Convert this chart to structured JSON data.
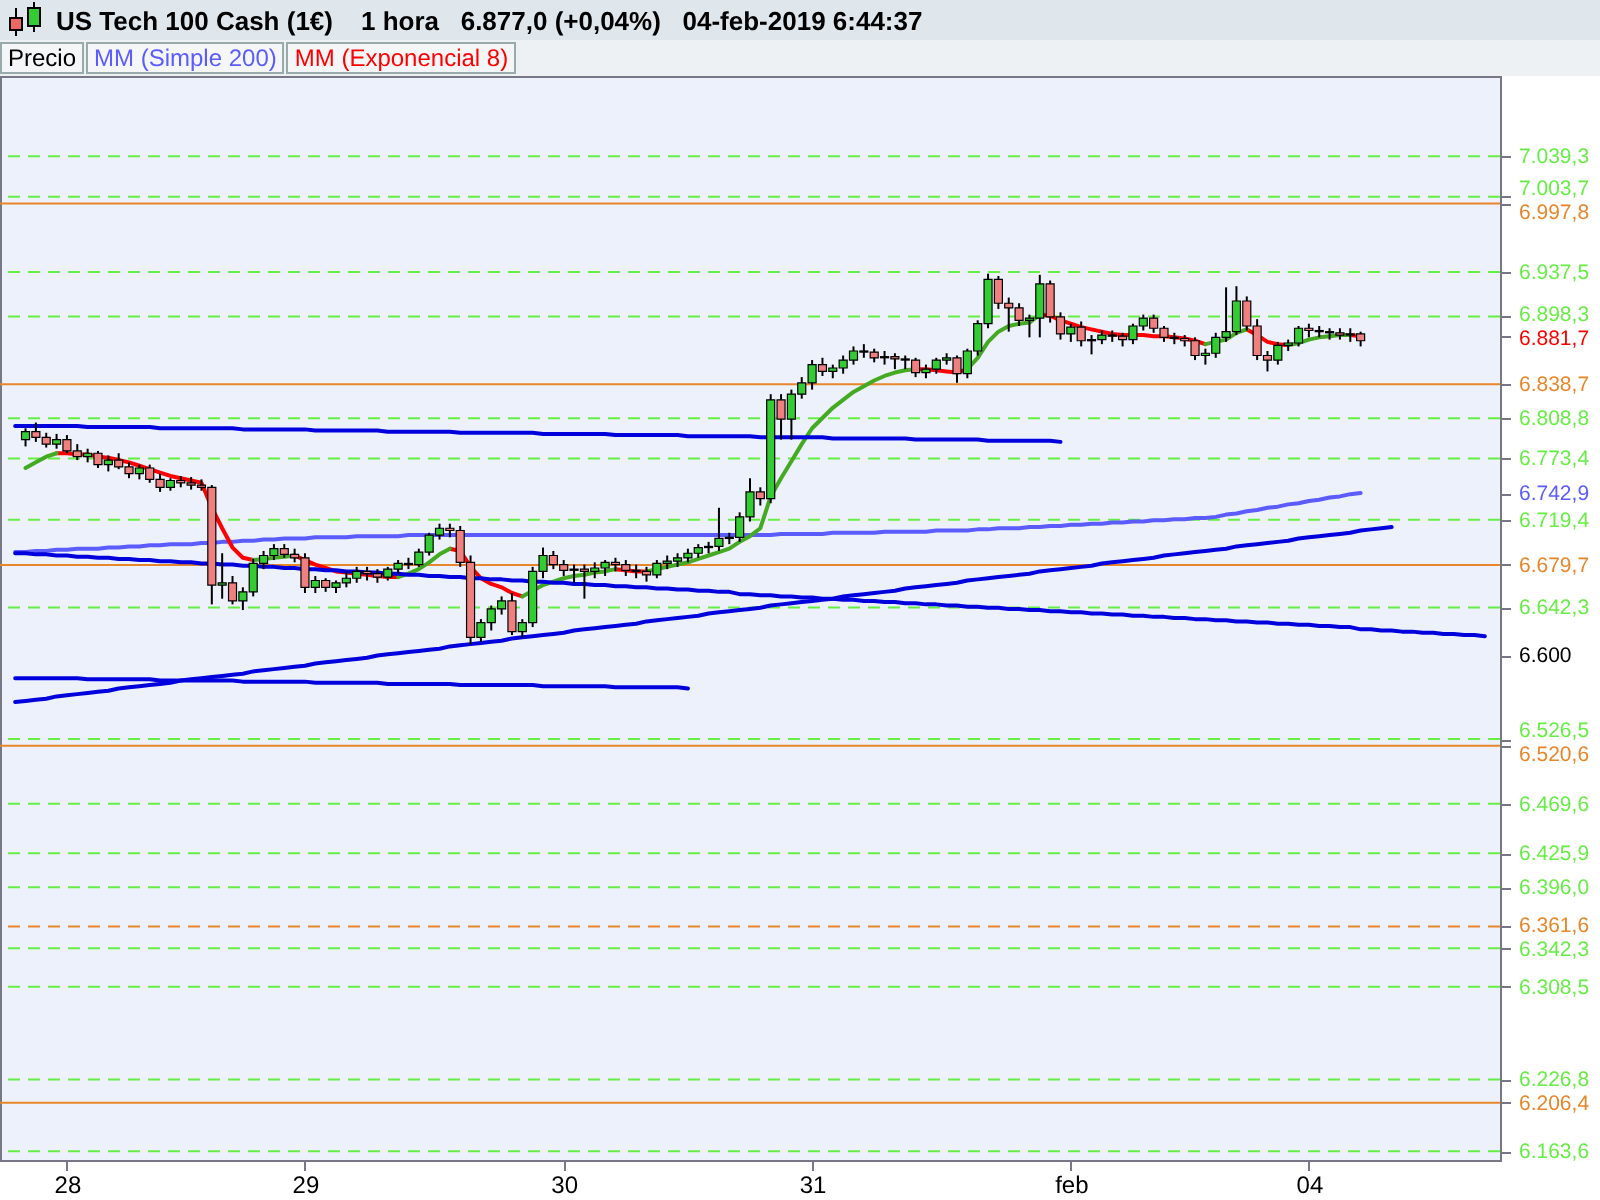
{
  "chart_data": {
    "type": "candlestick",
    "title": "US Tech 100 Cash (1€)",
    "subtitle": "1 hora   6.877,0 (+0,04%)   04-feb-2019 6:44:37",
    "legend": "top",
    "categories": [
      null,
      null,
      null,
      null,
      null,
      "28",
      null,
      null,
      null,
      null,
      null,
      null,
      null,
      null,
      null,
      null,
      null,
      null,
      null,
      null,
      null,
      null,
      null,
      null,
      null,
      null,
      null,
      null,
      "29",
      null,
      null,
      null,
      null,
      null,
      null,
      null,
      null,
      null,
      null,
      null,
      null,
      null,
      null,
      null,
      null,
      null,
      null,
      null,
      null,
      null,
      null,
      null,
      null,
      "30",
      null,
      null,
      null,
      null,
      null,
      null,
      null,
      null,
      null,
      null,
      null,
      null,
      null,
      null,
      null,
      null,
      null,
      null,
      null,
      null,
      null,
      null,
      null,
      "31",
      null,
      null,
      null,
      null,
      null,
      null,
      null,
      null,
      null,
      null,
      null,
      null,
      null,
      null,
      null,
      null,
      null,
      null,
      null,
      null,
      null,
      null,
      null,
      null,
      "feb",
      null,
      null,
      null,
      null,
      null,
      null,
      null,
      null,
      null,
      null,
      null,
      null,
      null,
      null,
      null,
      null,
      null,
      null,
      null,
      null,
      null,
      null,
      "04",
      null,
      null,
      null,
      null,
      null,
      null,
      null,
      null,
      null,
      null,
      null,
      null,
      null,
      null,
      null,
      null,
      null
    ],
    "ylim": [
      6156,
      7110
    ],
    "yticks": [
      {
        "value": 7039.3,
        "label": "7.039,3"
      },
      {
        "value": 7003.7,
        "label": "7.003,7"
      },
      {
        "value": 6997.8,
        "label": "6.997,8"
      },
      {
        "value": 6937.5,
        "label": "6.937,5"
      },
      {
        "value": 6898.3,
        "label": "6.898,3"
      },
      {
        "value": 6881.7,
        "label": "6.881,7"
      },
      {
        "value": 6838.7,
        "label": "6.838,7"
      },
      {
        "value": 6808.8,
        "label": "6.808,8"
      },
      {
        "value": 6773.4,
        "label": "6.773,4"
      },
      {
        "value": 6742.9,
        "label": "6.742,9"
      },
      {
        "value": 6719.4,
        "label": "6.719,4"
      },
      {
        "value": 6679.7,
        "label": "6.679,7"
      },
      {
        "value": 6642.3,
        "label": "6.642,3"
      },
      {
        "value": 6600,
        "label": "6.600"
      },
      {
        "value": 6526.5,
        "label": "6.526,5"
      },
      {
        "value": 6520.6,
        "label": "6.520,6"
      },
      {
        "value": 6469.6,
        "label": "6.469,6"
      },
      {
        "value": 6425.9,
        "label": "6.425,9"
      },
      {
        "value": 6396.0,
        "label": "6.396,0"
      },
      {
        "value": 6361.6,
        "label": "6.361,6"
      },
      {
        "value": 6342.3,
        "label": "6.342,3"
      },
      {
        "value": 6308.5,
        "label": "6.308,5"
      },
      {
        "value": 6226.8,
        "label": "6.226,8"
      },
      {
        "value": 6206.4,
        "label": "6.206,4"
      },
      {
        "value": 6163.6,
        "label": "6.163,6"
      }
    ],
    "series": [
      {
        "name": "Precio",
        "ohlc": [
          null,
          [
            6790,
            6800,
            6784,
            6797
          ],
          [
            6797,
            6805,
            6788,
            6792
          ],
          [
            6792,
            6796,
            6783,
            6786
          ],
          [
            6786,
            6795,
            6782,
            6790
          ],
          [
            6790,
            6794,
            6778,
            6780
          ],
          [
            6780,
            6786,
            6772,
            6775
          ],
          [
            6775,
            6782,
            6770,
            6778
          ],
          [
            6778,
            6780,
            6765,
            6768
          ],
          [
            6768,
            6776,
            6762,
            6772
          ],
          [
            6772,
            6778,
            6764,
            6766
          ],
          [
            6766,
            6770,
            6756,
            6760
          ],
          [
            6760,
            6768,
            6755,
            6765
          ],
          [
            6765,
            6768,
            6752,
            6755
          ],
          [
            6755,
            6760,
            6744,
            6748
          ],
          [
            6748,
            6756,
            6745,
            6754
          ],
          [
            6754,
            6758,
            6748,
            6752
          ],
          [
            6752,
            6757,
            6746,
            6750
          ],
          [
            6750,
            6755,
            6745,
            6748
          ],
          [
            6748,
            6750,
            6645,
            6662
          ],
          [
            6662,
            6690,
            6650,
            6664
          ],
          [
            6664,
            6670,
            6645,
            6648
          ],
          [
            6648,
            6660,
            6640,
            6656
          ],
          [
            6656,
            6685,
            6652,
            6681
          ],
          [
            6681,
            6692,
            6676,
            6688
          ],
          [
            6688,
            6698,
            6684,
            6694
          ],
          [
            6694,
            6698,
            6686,
            6689
          ],
          [
            6689,
            6694,
            6682,
            6686
          ],
          [
            6686,
            6690,
            6655,
            6660
          ],
          [
            6660,
            6670,
            6655,
            6666
          ],
          [
            6666,
            6668,
            6656,
            6660
          ],
          [
            6660,
            6666,
            6655,
            6664
          ],
          [
            6664,
            6674,
            6660,
            6668
          ],
          [
            6668,
            6678,
            6664,
            6674
          ],
          [
            6674,
            6678,
            6666,
            6672
          ],
          [
            6672,
            6676,
            6664,
            6669
          ],
          [
            6669,
            6678,
            6666,
            6676
          ],
          [
            6676,
            6684,
            6672,
            6681
          ],
          [
            6681,
            6686,
            6676,
            6680
          ],
          [
            6680,
            6694,
            6678,
            6691
          ],
          [
            6691,
            6708,
            6688,
            6706
          ],
          [
            6706,
            6716,
            6702,
            6712
          ],
          [
            6712,
            6716,
            6704,
            6710
          ],
          [
            6710,
            6714,
            6678,
            6682
          ],
          [
            6682,
            6688,
            6610,
            6616
          ],
          [
            6616,
            6632,
            6612,
            6629
          ],
          [
            6629,
            6644,
            6622,
            6641
          ],
          [
            6641,
            6652,
            6636,
            6648
          ],
          [
            6648,
            6655,
            6618,
            6621
          ],
          [
            6621,
            6632,
            6616,
            6629
          ],
          [
            6629,
            6678,
            6625,
            6674
          ],
          [
            6674,
            6695,
            6668,
            6688
          ],
          [
            6688,
            6692,
            6676,
            6680
          ],
          [
            6680,
            6684,
            6670,
            6675
          ],
          [
            6675,
            6680,
            6664,
            6676
          ],
          [
            6676,
            6680,
            6650,
            6674
          ],
          [
            6674,
            6682,
            6668,
            6677
          ],
          [
            6677,
            6684,
            6670,
            6682
          ],
          [
            6682,
            6686,
            6674,
            6680
          ],
          [
            6680,
            6684,
            6670,
            6675
          ],
          [
            6675,
            6680,
            6668,
            6674
          ],
          [
            6674,
            6678,
            6665,
            6671
          ],
          [
            6671,
            6684,
            6668,
            6681
          ],
          [
            6681,
            6688,
            6676,
            6683
          ],
          [
            6683,
            6690,
            6678,
            6686
          ],
          [
            6686,
            6694,
            6682,
            6690
          ],
          [
            6690,
            6698,
            6686,
            6695
          ],
          [
            6695,
            6700,
            6690,
            6696
          ],
          [
            6696,
            6730,
            6692,
            6703
          ],
          [
            6703,
            6708,
            6698,
            6704
          ],
          [
            6704,
            6726,
            6700,
            6722
          ],
          [
            6722,
            6756,
            6718,
            6744
          ],
          [
            6744,
            6748,
            6732,
            6738
          ],
          [
            6738,
            6830,
            6734,
            6825
          ],
          [
            6825,
            6830,
            6790,
            6808
          ],
          [
            6808,
            6834,
            6790,
            6830
          ],
          [
            6830,
            6845,
            6826,
            6840
          ],
          [
            6840,
            6860,
            6834,
            6856
          ],
          [
            6856,
            6862,
            6846,
            6850
          ],
          [
            6850,
            6856,
            6844,
            6853
          ],
          [
            6853,
            6864,
            6848,
            6860
          ],
          [
            6860,
            6872,
            6856,
            6868
          ],
          [
            6868,
            6874,
            6862,
            6867
          ],
          [
            6867,
            6870,
            6858,
            6862
          ],
          [
            6862,
            6868,
            6856,
            6863
          ],
          [
            6863,
            6866,
            6852,
            6861
          ],
          [
            6861,
            6864,
            6852,
            6860
          ],
          [
            6860,
            6862,
            6845,
            6849
          ],
          [
            6849,
            6856,
            6844,
            6852
          ],
          [
            6852,
            6862,
            6848,
            6860
          ],
          [
            6860,
            6866,
            6856,
            6862
          ],
          [
            6862,
            6864,
            6840,
            6848
          ],
          [
            6848,
            6870,
            6844,
            6868
          ],
          [
            6868,
            6895,
            6864,
            6892
          ],
          [
            6892,
            6936,
            6888,
            6931
          ],
          [
            6931,
            6934,
            6905,
            6910
          ],
          [
            6910,
            6915,
            6885,
            6906
          ],
          [
            6906,
            6910,
            6890,
            6895
          ],
          [
            6895,
            6900,
            6880,
            6897
          ],
          [
            6897,
            6935,
            6880,
            6927
          ],
          [
            6927,
            6930,
            6893,
            6898
          ],
          [
            6898,
            6902,
            6878,
            6883
          ],
          [
            6883,
            6892,
            6876,
            6889
          ],
          [
            6889,
            6894,
            6872,
            6877
          ],
          [
            6877,
            6882,
            6865,
            6878
          ],
          [
            6878,
            6886,
            6874,
            6882
          ],
          [
            6882,
            6886,
            6876,
            6881
          ],
          [
            6881,
            6884,
            6872,
            6878
          ],
          [
            6878,
            6892,
            6874,
            6890
          ],
          [
            6890,
            6900,
            6886,
            6897
          ],
          [
            6897,
            6900,
            6884,
            6888
          ],
          [
            6888,
            6890,
            6876,
            6880
          ],
          [
            6880,
            6884,
            6874,
            6879
          ],
          [
            6879,
            6882,
            6872,
            6877
          ],
          [
            6877,
            6880,
            6860,
            6864
          ],
          [
            6864,
            6870,
            6856,
            6866
          ],
          [
            6866,
            6884,
            6862,
            6880
          ],
          [
            6880,
            6924,
            6876,
            6885
          ],
          [
            6885,
            6925,
            6882,
            6912
          ],
          [
            6912,
            6916,
            6886,
            6890
          ],
          [
            6890,
            6896,
            6860,
            6864
          ],
          [
            6864,
            6868,
            6850,
            6860
          ],
          [
            6860,
            6876,
            6856,
            6873
          ],
          [
            6873,
            6878,
            6868,
            6875
          ],
          [
            6875,
            6890,
            6872,
            6888
          ],
          [
            6888,
            6892,
            6880,
            6886
          ],
          [
            6886,
            6890,
            6880,
            6885
          ],
          [
            6885,
            6888,
            6878,
            6884
          ],
          [
            6884,
            6888,
            6878,
            6882
          ],
          [
            6882,
            6888,
            6876,
            6883
          ],
          [
            6883,
            6885,
            6872,
            6877
          ],
          null,
          null,
          null,
          null,
          null,
          null,
          null,
          null,
          null,
          null,
          null,
          null
        ]
      },
      {
        "name": "MM (Simple 200)",
        "type": "line",
        "color": "#5b5bff",
        "values": [
          6691,
          6691,
          6692,
          6692,
          6693,
          6693,
          6694,
          6694,
          6694,
          6695,
          6695,
          6696,
          6696,
          6697,
          6697,
          6698,
          6698,
          6698,
          6699,
          6699,
          6700,
          6700,
          6701,
          6701,
          6702,
          6702,
          6703,
          6703,
          6703,
          6704,
          6704,
          6704,
          6704,
          6705,
          6705,
          6705,
          6705,
          6705,
          6706,
          6706,
          6706,
          6706,
          6706,
          6706,
          6706,
          6706,
          6706,
          6706,
          6706,
          6706,
          6706,
          6706,
          6706,
          6706,
          6706,
          6706,
          6706,
          6706,
          6706,
          6706,
          6706,
          6706,
          6706,
          6706,
          6706,
          6706,
          6706,
          6706,
          6706,
          6706,
          6706,
          6706,
          6706,
          6706,
          6707,
          6707,
          6707,
          6707,
          6707,
          6708,
          6708,
          6708,
          6708,
          6708,
          6709,
          6709,
          6709,
          6709,
          6709,
          6710,
          6710,
          6710,
          6710,
          6711,
          6711,
          6712,
          6712,
          6712,
          6713,
          6713,
          6714,
          6714,
          6715,
          6715,
          6716,
          6716,
          6717,
          6717,
          6718,
          6718,
          6719,
          6719,
          6720,
          6720,
          6721,
          6721,
          6722,
          6724,
          6725,
          6727,
          6728,
          6730,
          6731,
          6733,
          6734,
          6736,
          6737,
          6739,
          6740,
          6742,
          6743,
          null,
          null,
          null,
          null,
          null,
          null,
          null,
          null,
          null,
          null,
          null,
          null
        ]
      },
      {
        "name": "MM (Exponencial 8)",
        "type": "line",
        "color": "#ff0000",
        "values": [
          null,
          null,
          null,
          null,
          6778,
          6778,
          6777,
          6777,
          6775,
          6774,
          6772,
          6770,
          6767,
          6764,
          6761,
          6758,
          6756,
          6754,
          6752,
          6730,
          6712,
          6695,
          6686,
          6684,
          null,
          null,
          null,
          6688,
          6684,
          6680,
          6677,
          6674,
          6673,
          6672,
          6671,
          6670,
          6669,
          6669,
          null,
          null,
          null,
          null,
          6694,
          6692,
          6678,
          6668,
          6663,
          6660,
          6655,
          6652,
          null,
          null,
          null,
          null,
          null,
          null,
          null,
          null,
          6676,
          6675,
          6674,
          6674,
          null,
          null,
          null,
          null,
          null,
          null,
          null,
          null,
          null,
          null,
          null,
          null,
          null,
          null,
          null,
          null,
          null,
          null,
          null,
          null,
          null,
          null,
          null,
          null,
          null,
          6852,
          6852,
          6851,
          6850,
          6849,
          6852,
          null,
          null,
          null,
          null,
          null,
          null,
          6900,
          6899,
          6895,
          6892,
          6889,
          6887,
          6885,
          6883,
          6882,
          6882,
          6882,
          6881,
          6881,
          6880,
          6879,
          6877,
          6874,
          null,
          null,
          null,
          6887,
          6882,
          6876,
          6874,
          6873,
          null,
          null,
          null,
          null,
          null,
          6882,
          6881,
          null,
          null,
          null,
          null,
          null,
          null,
          null,
          null,
          null,
          null,
          null,
          null
        ]
      },
      {
        "type": "line",
        "color": "#44aa22",
        "values": [
          null,
          6765,
          6770,
          6775,
          6778,
          null,
          null,
          null,
          null,
          null,
          null,
          null,
          null,
          null,
          null,
          null,
          null,
          null,
          null,
          null,
          null,
          null,
          null,
          6684,
          6685,
          6686,
          6687,
          6688,
          null,
          null,
          null,
          null,
          null,
          null,
          null,
          null,
          null,
          6669,
          6672,
          6676,
          6682,
          6689,
          6694,
          null,
          null,
          null,
          null,
          null,
          null,
          6652,
          6657,
          6662,
          6665,
          6668,
          6670,
          6671,
          6673,
          6674,
          6676,
          null,
          null,
          6674,
          6676,
          6678,
          6680,
          6682,
          6685,
          6688,
          6691,
          6694,
          6700,
          6705,
          6712,
          6740,
          6756,
          6771,
          6786,
          6800,
          6809,
          6818,
          6825,
          6832,
          6837,
          6842,
          6846,
          6849,
          6851,
          6852,
          null,
          null,
          null,
          null,
          6852,
          6862,
          6876,
          6885,
          6890,
          6892,
          6893,
          6900,
          null,
          null,
          null,
          null,
          null,
          null,
          null,
          null,
          null,
          null,
          null,
          null,
          null,
          null,
          null,
          6874,
          6876,
          6878,
          6884,
          6887,
          null,
          null,
          null,
          6873,
          6875,
          6878,
          6880,
          6881,
          6882,
          6882,
          null,
          null,
          null,
          null,
          null,
          null,
          null,
          null,
          null,
          null,
          null,
          null,
          null
        ]
      },
      {
        "type": "line",
        "color": "#0000dd",
        "values": [
          6802,
          6802,
          6802,
          6802,
          6802,
          6802,
          6802,
          6801,
          6801,
          6801,
          6801,
          6801,
          6801,
          6801,
          6800,
          6800,
          6800,
          6800,
          6800,
          6800,
          6800,
          6800,
          6799,
          6799,
          6799,
          6799,
          6799,
          6799,
          6799,
          6798,
          6798,
          6798,
          6798,
          6798,
          6798,
          6798,
          6797,
          6797,
          6797,
          6797,
          6797,
          6797,
          6797,
          6796,
          6796,
          6796,
          6796,
          6796,
          6796,
          6796,
          6796,
          6795,
          6795,
          6795,
          6795,
          6795,
          6795,
          6795,
          6794,
          6794,
          6794,
          6794,
          6794,
          6794,
          6794,
          6793,
          6793,
          6793,
          6793,
          6793,
          6793,
          6793,
          6792,
          6792,
          6792,
          6792,
          6792,
          6792,
          6792,
          6791,
          6791,
          6791,
          6791,
          6791,
          6791,
          6791,
          6791,
          6790,
          6790,
          6790,
          6790,
          6790,
          6790,
          6790,
          6789,
          6789,
          6789,
          6789,
          6789,
          6789,
          6789,
          6788,
          null,
          null,
          null,
          null,
          null,
          null,
          null,
          null,
          null,
          null,
          null,
          null,
          null,
          null,
          null,
          null,
          null,
          null,
          null,
          null,
          null,
          null,
          null,
          null,
          null,
          null,
          null,
          null,
          null,
          null,
          null,
          null,
          null,
          null,
          null,
          null,
          null,
          null,
          null,
          null,
          null
        ]
      },
      {
        "type": "line",
        "color": "#0000dd",
        "values": [
          6690,
          6690,
          6689,
          6689,
          6688,
          6688,
          6687,
          6687,
          6686,
          6686,
          6685,
          6685,
          6684,
          6684,
          6683,
          6683,
          6682,
          6682,
          6681,
          6681,
          6680,
          6680,
          6679,
          6679,
          6678,
          6678,
          6677,
          6677,
          6676,
          6676,
          6675,
          6675,
          6674,
          6674,
          6673,
          6673,
          6672,
          6672,
          6671,
          6671,
          6670,
          6670,
          6669,
          6669,
          6668,
          6668,
          6667,
          6667,
          6666,
          6666,
          6665,
          6665,
          6664,
          6664,
          6663,
          6663,
          6662,
          6662,
          6661,
          6661,
          6660,
          6660,
          6659,
          6659,
          6658,
          6658,
          6657,
          6657,
          6656,
          6656,
          6654,
          6654,
          6653,
          6653,
          6652,
          6652,
          6651,
          6651,
          6650,
          6650,
          6649,
          6649,
          6648,
          6648,
          6647,
          6647,
          6646,
          6646,
          6645,
          6645,
          6644,
          6644,
          6643,
          6643,
          6642,
          6642,
          6641,
          6641,
          6640,
          6640,
          6639,
          6639,
          6638,
          6638,
          6637,
          6637,
          6636,
          6636,
          6635,
          6635,
          6634,
          6634,
          6633,
          6633,
          6632,
          6632,
          6631,
          6631,
          6630,
          6630,
          6629,
          6629,
          6628,
          6628,
          6627,
          6627,
          6626,
          6626,
          6625,
          6625,
          6623,
          6623,
          6622,
          6622,
          6621,
          6621,
          6620,
          6620,
          6619,
          6619,
          6618,
          6618,
          6617
        ]
      },
      {
        "type": "line",
        "color": "#0000dd",
        "values": [
          6559,
          6560,
          6561,
          6562,
          6564,
          6565,
          6566,
          6567,
          6568,
          6569,
          6571,
          6572,
          6573,
          6574,
          6575,
          6576,
          6578,
          6579,
          6580,
          6581,
          6582,
          6583,
          6584,
          6586,
          6587,
          6588,
          6589,
          6590,
          6591,
          6593,
          6594,
          6595,
          6596,
          6597,
          6598,
          6600,
          6601,
          6602,
          6603,
          6604,
          6605,
          6606,
          6608,
          6609,
          6610,
          6611,
          6612,
          6613,
          6615,
          6616,
          6617,
          6618,
          6619,
          6620,
          6622,
          6623,
          6624,
          6625,
          6626,
          6627,
          6628,
          6630,
          6631,
          6632,
          6633,
          6634,
          6635,
          6637,
          6638,
          6639,
          6640,
          6641,
          6642,
          6644,
          6645,
          6646,
          6647,
          6648,
          6649,
          6650,
          6652,
          6653,
          6654,
          6655,
          6656,
          6657,
          6659,
          6660,
          6661,
          6662,
          6663,
          6664,
          6666,
          6667,
          6668,
          6669,
          6670,
          6671,
          6672,
          6674,
          6675,
          6676,
          6677,
          6678,
          6679,
          6681,
          6682,
          6683,
          6684,
          6685,
          6686,
          6688,
          6689,
          6690,
          6691,
          6692,
          6693,
          6694,
          6696,
          6697,
          6698,
          6699,
          6700,
          6701,
          6703,
          6704,
          6705,
          6706,
          6707,
          6708,
          6710,
          6711,
          6712,
          6713,
          null,
          null,
          null,
          null,
          null,
          null,
          null,
          null,
          null
        ]
      },
      {
        "type": "line",
        "color": "#0000dd",
        "values": [
          6580,
          6580,
          6580,
          6580,
          6580,
          6580,
          6580,
          6579,
          6579,
          6579,
          6579,
          6579,
          6579,
          6579,
          6578,
          6578,
          6578,
          6578,
          6578,
          6578,
          6578,
          6578,
          6577,
          6577,
          6577,
          6577,
          6577,
          6577,
          6577,
          6576,
          6576,
          6576,
          6576,
          6576,
          6576,
          6576,
          6575,
          6575,
          6575,
          6575,
          6575,
          6575,
          6575,
          6574,
          6574,
          6574,
          6574,
          6574,
          6574,
          6574,
          6574,
          6573,
          6573,
          6573,
          6573,
          6573,
          6573,
          6573,
          6572,
          6572,
          6572,
          6572,
          6572,
          6572,
          6572,
          6571,
          null,
          null,
          null,
          null,
          null,
          null,
          null,
          null,
          null,
          null,
          null,
          null,
          null,
          null,
          null,
          null,
          null,
          null,
          null,
          null,
          null,
          null,
          null,
          null,
          null,
          null,
          null,
          null,
          null,
          null,
          null,
          null,
          null,
          null,
          null,
          null,
          null,
          null,
          null,
          null,
          null,
          null,
          null,
          null,
          null,
          null,
          null,
          null,
          null,
          null,
          null,
          null,
          null,
          null,
          null,
          null,
          null,
          null,
          null,
          null,
          null,
          null,
          null,
          null,
          null,
          null,
          null,
          null,
          null,
          null,
          null,
          null,
          null,
          null,
          null,
          null,
          null
        ]
      }
    ],
    "ref_lines": [
      {
        "axis": "y",
        "value": 7039.3,
        "color": "#66ee44",
        "line_style": "dashed"
      },
      {
        "axis": "y",
        "value": 7003.7,
        "color": "#66ee44",
        "line_style": "dashed"
      },
      {
        "axis": "y",
        "value": 6997.8,
        "color": "#e8862a",
        "line_style": "solid"
      },
      {
        "axis": "y",
        "value": 6937.5,
        "color": "#66ee44",
        "line_style": "dashed"
      },
      {
        "axis": "y",
        "value": 6898.3,
        "color": "#66ee44",
        "line_style": "dashed"
      },
      {
        "axis": "y",
        "value": 6838.7,
        "color": "#e8862a",
        "line_style": "solid"
      },
      {
        "axis": "y",
        "value": 6808.8,
        "color": "#66ee44",
        "line_style": "dashed"
      },
      {
        "axis": "y",
        "value": 6773.4,
        "color": "#66ee44",
        "line_style": "dashed"
      },
      {
        "axis": "y",
        "value": 6719.4,
        "color": "#66ee44",
        "line_style": "dashed"
      },
      {
        "axis": "y",
        "value": 6679.7,
        "color": "#e8862a",
        "line_style": "solid"
      },
      {
        "axis": "y",
        "value": 6642.3,
        "color": "#66ee44",
        "line_style": "dashed"
      },
      {
        "axis": "y",
        "value": 6526.5,
        "color": "#66ee44",
        "line_style": "dashed"
      },
      {
        "axis": "y",
        "value": 6520.6,
        "color": "#e8862a",
        "line_style": "solid"
      },
      {
        "axis": "y",
        "value": 6469.6,
        "color": "#66ee44",
        "line_style": "dashed"
      },
      {
        "axis": "y",
        "value": 6425.9,
        "color": "#66ee44",
        "line_style": "dashed"
      },
      {
        "axis": "y",
        "value": 6396.0,
        "color": "#66ee44",
        "line_style": "dashed"
      },
      {
        "axis": "y",
        "value": 6361.6,
        "color": "#e8862a",
        "line_style": "dashed"
      },
      {
        "axis": "y",
        "value": 6342.3,
        "color": "#66ee44",
        "line_style": "dashed"
      },
      {
        "axis": "y",
        "value": 6308.5,
        "color": "#66ee44",
        "line_style": "dashed"
      },
      {
        "axis": "y",
        "value": 6226.8,
        "color": "#66ee44",
        "line_style": "dashed"
      },
      {
        "axis": "y",
        "value": 6206.4,
        "color": "#e8862a",
        "line_style": "solid"
      },
      {
        "axis": "y",
        "value": 6163.6,
        "color": "#66ee44",
        "line_style": "dashed"
      }
    ]
  }
}
